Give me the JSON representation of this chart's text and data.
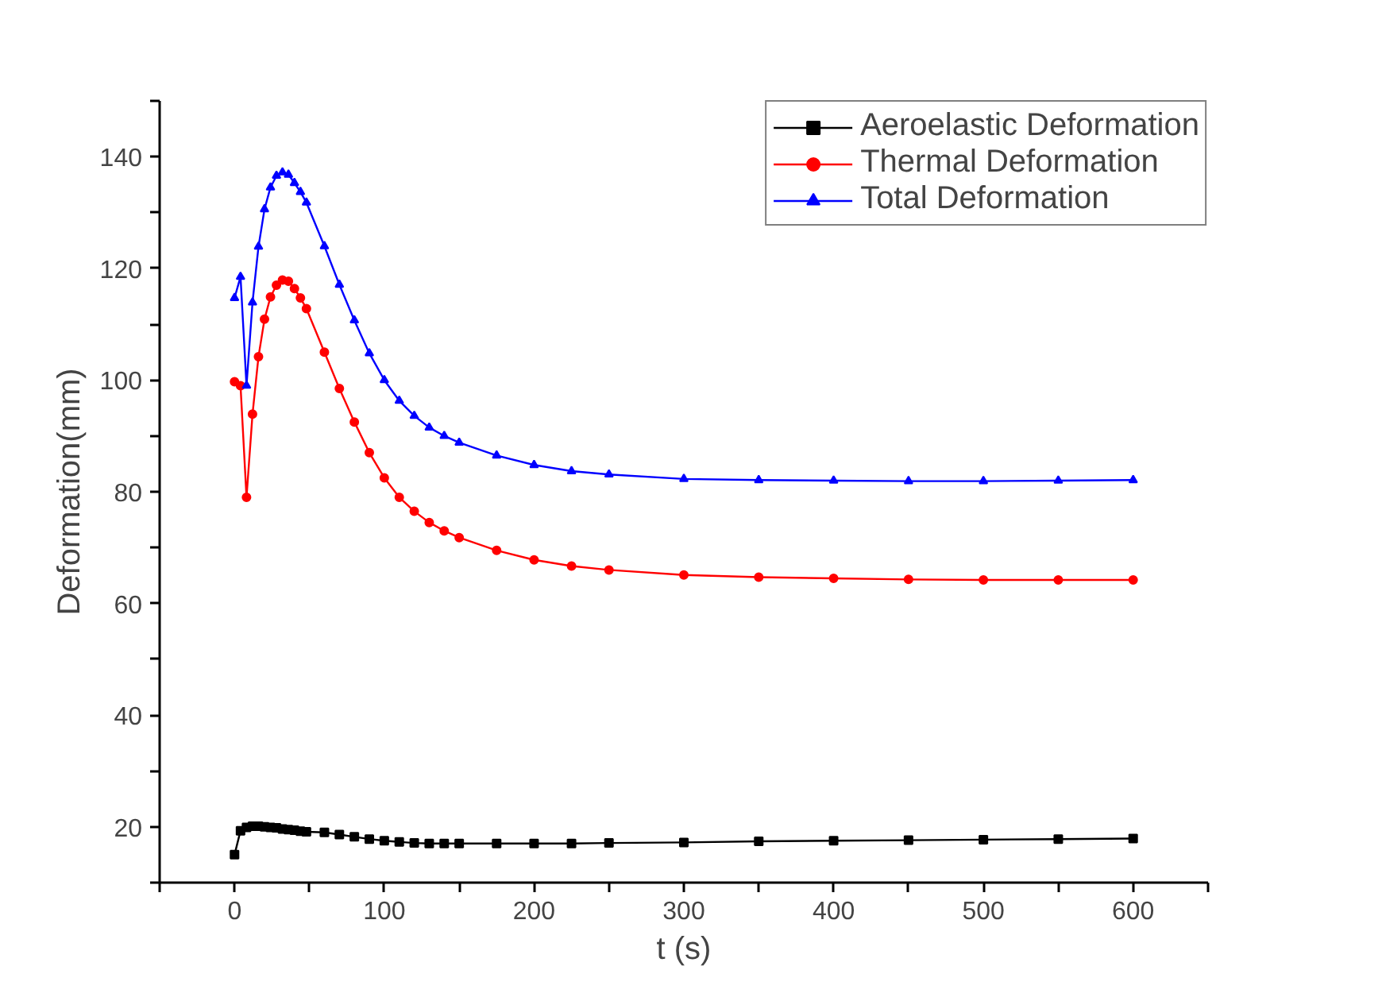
{
  "chart_data": {
    "type": "line",
    "xlabel": "t (s)",
    "ylabel": "Deformation(mm)",
    "x": [
      0,
      4,
      8,
      12,
      16,
      20,
      24,
      28,
      32,
      36,
      40,
      44,
      48,
      60,
      70,
      80,
      90,
      100,
      110,
      120,
      130,
      140,
      150,
      175,
      200,
      225,
      250,
      300,
      350,
      400,
      450,
      500,
      550,
      600
    ],
    "series": [
      {
        "name": "Aeroelastic Deformation",
        "color": "#000000",
        "marker": "square",
        "values": [
          15,
          19.3,
          19.9,
          20.1,
          20.1,
          20,
          19.9,
          19.8,
          19.6,
          19.5,
          19.4,
          19.2,
          19.1,
          19,
          18.6,
          18.2,
          17.8,
          17.5,
          17.3,
          17.1,
          17,
          17,
          17,
          17,
          17,
          17,
          17.1,
          17.2,
          17.4,
          17.5,
          17.6,
          17.7,
          17.8,
          17.9
        ]
      },
      {
        "name": "Thermal Deformation",
        "color": "#ff0000",
        "marker": "circle",
        "values": [
          99.7,
          99,
          79,
          93.9,
          104.2,
          110.9,
          114.9,
          117,
          117.9,
          117.7,
          116.4,
          114.7,
          112.8,
          105,
          98.5,
          92.5,
          87,
          82.5,
          79,
          76.5,
          74.5,
          73,
          71.8,
          69.5,
          67.8,
          66.7,
          66,
          65.1,
          64.7,
          64.5,
          64.3,
          64.2,
          64.2,
          64.2
        ]
      },
      {
        "name": "Total Deformation",
        "color": "#0000ff",
        "marker": "triangle",
        "values": [
          114.7,
          118.5,
          99,
          113.9,
          123.9,
          130.6,
          134.5,
          136.6,
          137.2,
          136.8,
          135.3,
          133.7,
          131.8,
          124,
          117.1,
          110.7,
          104.8,
          100,
          96.3,
          93.6,
          91.5,
          90,
          88.8,
          86.5,
          84.8,
          83.7,
          83.1,
          82.3,
          82.1,
          82,
          81.9,
          81.9,
          82,
          82.1
        ]
      }
    ],
    "xlim": [
      -50,
      650
    ],
    "xticks": [
      {
        "value": -50,
        "label": null
      },
      0,
      {
        "value": 50,
        "label": null
      },
      100,
      {
        "value": 150,
        "label": null
      },
      200,
      {
        "value": 250,
        "label": null
      },
      300,
      {
        "value": 350,
        "label": null
      },
      400,
      {
        "value": 450,
        "label": null
      },
      500,
      {
        "value": 550,
        "label": null
      },
      600,
      {
        "value": 650,
        "label": null
      }
    ],
    "ylim": [
      10,
      150
    ],
    "yticks": [
      {
        "value": 10,
        "label": null
      },
      20,
      {
        "value": 30,
        "label": null
      },
      40,
      {
        "value": 50,
        "label": null
      },
      60,
      {
        "value": 70,
        "label": null
      },
      80,
      {
        "value": 90,
        "label": null
      },
      100,
      {
        "value": 110,
        "label": null
      },
      120,
      {
        "value": 130,
        "label": null
      },
      140,
      {
        "value": 150,
        "label": null
      }
    ],
    "grid": false,
    "legend": "top right",
    "line_style": "solid"
  }
}
